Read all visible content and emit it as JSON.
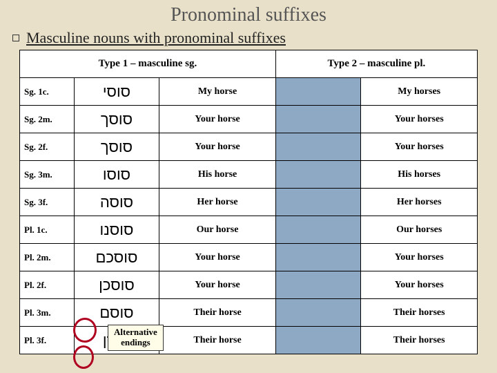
{
  "title": "Pronominal suffixes",
  "subtitle": "Masculine nouns with pronominal suffixes",
  "headers": {
    "type1": "Type 1 – masculine sg.",
    "type2": "Type 2 – masculine pl."
  },
  "rows": [
    {
      "label": "Sg. 1c.",
      "hebrew": "סוסי",
      "gloss1": "My horse",
      "gloss2": "My horses"
    },
    {
      "label": "Sg. 2m.",
      "hebrew": "סוסך",
      "gloss1": "Your horse",
      "gloss2": "Your horses"
    },
    {
      "label": "Sg. 2f.",
      "hebrew": "סוסך",
      "gloss1": "Your horse",
      "gloss2": "Your horses"
    },
    {
      "label": "Sg. 3m.",
      "hebrew": "סוסו",
      "gloss1": "His horse",
      "gloss2": "His horses"
    },
    {
      "label": "Sg. 3f.",
      "hebrew": "סוסה",
      "gloss1": "Her horse",
      "gloss2": "Her horses"
    },
    {
      "label": "Pl. 1c.",
      "hebrew": "סוסנו",
      "gloss1": "Our horse",
      "gloss2": "Our horses"
    },
    {
      "label": "Pl. 2m.",
      "hebrew": "סוסכם",
      "gloss1": "Your horse",
      "gloss2": "Your horses"
    },
    {
      "label": "Pl. 2f.",
      "hebrew": "סוסכן",
      "gloss1": "Your horse",
      "gloss2": "Your horses"
    },
    {
      "label": "Pl. 3m.",
      "hebrew": "סוסם",
      "gloss1": "Their horse",
      "gloss2": "Their horses"
    },
    {
      "label": "Pl. 3f.",
      "hebrew": "סוסן",
      "gloss1": "Their horse",
      "gloss2": "Their horses"
    }
  ],
  "callout": {
    "line1": "Alternative",
    "line2": "endings"
  },
  "colors": {
    "background": "#e8e0c8",
    "hidden_col": "#8ea9c4",
    "circle": "#b00020",
    "callout_bg": "#fffde7"
  }
}
